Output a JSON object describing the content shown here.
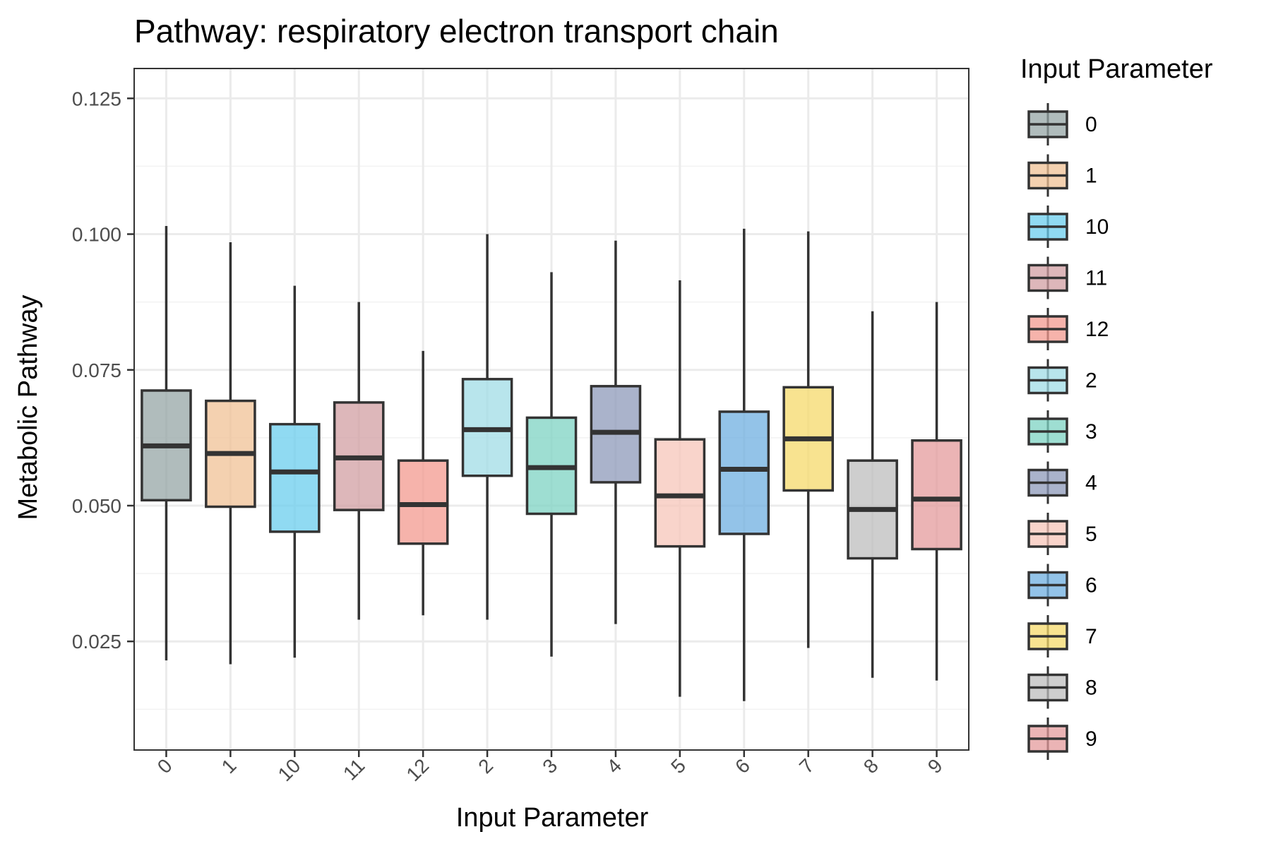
{
  "chart_data": {
    "type": "box",
    "title": "Pathway: respiratory electron transport chain",
    "xlabel": "Input Parameter",
    "ylabel": "Metabolic Pathway",
    "ylim": [
      0.005,
      0.1305
    ],
    "yticks": [
      0.025,
      0.05,
      0.075,
      0.1,
      0.125
    ],
    "ytick_labels": [
      "0.025",
      "0.050",
      "0.075",
      "0.100",
      "0.125"
    ],
    "grid": true,
    "legend": {
      "title": "Input Parameter",
      "position": "right"
    },
    "categories": [
      "0",
      "1",
      "10",
      "11",
      "12",
      "2",
      "3",
      "4",
      "5",
      "6",
      "7",
      "8",
      "9"
    ],
    "boxes": [
      {
        "category": "0",
        "whisker_low": 0.0215,
        "q1": 0.051,
        "median": 0.061,
        "q3": 0.0712,
        "whisker_high": 0.1015,
        "color": "#95A5A6"
      },
      {
        "category": "1",
        "whisker_low": 0.0208,
        "q1": 0.0498,
        "median": 0.0596,
        "q3": 0.0693,
        "whisker_high": 0.0985,
        "color": "#F0C195"
      },
      {
        "category": "10",
        "whisker_low": 0.022,
        "q1": 0.0452,
        "median": 0.0562,
        "q3": 0.065,
        "whisker_high": 0.0905,
        "color": "#6BCDED"
      },
      {
        "category": "11",
        "whisker_low": 0.029,
        "q1": 0.0492,
        "median": 0.0588,
        "q3": 0.069,
        "whisker_high": 0.0875,
        "color": "#D19FA3"
      },
      {
        "category": "12",
        "whisker_low": 0.0298,
        "q1": 0.043,
        "median": 0.0502,
        "q3": 0.0583,
        "whisker_high": 0.0785,
        "color": "#F39A8F"
      },
      {
        "category": "2",
        "whisker_low": 0.029,
        "q1": 0.0555,
        "median": 0.064,
        "q3": 0.0733,
        "whisker_high": 0.1,
        "color": "#A0DCE6"
      },
      {
        "category": "3",
        "whisker_low": 0.0222,
        "q1": 0.0485,
        "median": 0.057,
        "q3": 0.0662,
        "whisker_high": 0.093,
        "color": "#7ED3C3"
      },
      {
        "category": "4",
        "whisker_low": 0.0282,
        "q1": 0.0543,
        "median": 0.0635,
        "q3": 0.072,
        "whisker_high": 0.0988,
        "color": "#8E99BA"
      },
      {
        "category": "5",
        "whisker_low": 0.0148,
        "q1": 0.0425,
        "median": 0.0518,
        "q3": 0.0622,
        "whisker_high": 0.0915,
        "color": "#F7C6BA"
      },
      {
        "category": "6",
        "whisker_low": 0.014,
        "q1": 0.0448,
        "median": 0.0567,
        "q3": 0.0673,
        "whisker_high": 0.101,
        "color": "#6FAFE0"
      },
      {
        "category": "7",
        "whisker_low": 0.0238,
        "q1": 0.0528,
        "median": 0.0623,
        "q3": 0.0718,
        "whisker_high": 0.1005,
        "color": "#F5D96B"
      },
      {
        "category": "8",
        "whisker_low": 0.0183,
        "q1": 0.0403,
        "median": 0.0493,
        "q3": 0.0583,
        "whisker_high": 0.0858,
        "color": "#BEBEBE"
      },
      {
        "category": "9",
        "whisker_low": 0.0178,
        "q1": 0.042,
        "median": 0.0512,
        "q3": 0.062,
        "whisker_high": 0.0875,
        "color": "#E49B9C"
      }
    ]
  }
}
